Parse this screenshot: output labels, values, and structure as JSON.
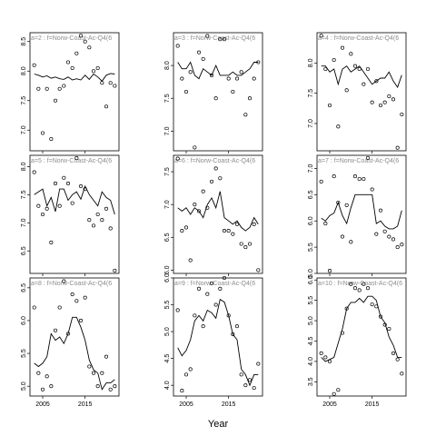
{
  "chart_data": {
    "type": "scatter",
    "xlabel": "Year",
    "x_ticks": [
      "2005",
      "2015"
    ],
    "xlim": [
      2002,
      2023
    ],
    "panels": [
      {
        "label": "a=2 : f=Norw-Coast-Ac-Q4(6",
        "ylim": [
          6.65,
          8.65
        ],
        "yticks": [
          "7.0",
          "7.5",
          "8.0",
          "8.5"
        ],
        "points": {
          "x": [
            2003,
            2004,
            2005,
            2006,
            2007,
            2008,
            2009,
            2010,
            2011,
            2012,
            2013,
            2014,
            2015,
            2016,
            2017,
            2018,
            2019,
            2020,
            2021,
            2022
          ],
          "y": [
            8.1,
            7.7,
            6.95,
            7.7,
            6.85,
            7.5,
            7.7,
            7.75,
            8.15,
            8.05,
            8.3,
            8.6,
            8.5,
            8.4,
            8.0,
            8.05,
            7.8,
            7.4,
            7.8,
            7.75
          ]
        },
        "line": {
          "x": [
            2003,
            2004,
            2005,
            2006,
            2007,
            2008,
            2009,
            2010,
            2011,
            2012,
            2013,
            2014,
            2015,
            2016,
            2017,
            2018,
            2019,
            2020,
            2021,
            2022
          ],
          "y": [
            7.95,
            7.93,
            7.9,
            7.92,
            7.88,
            7.9,
            7.87,
            7.86,
            7.9,
            7.85,
            7.87,
            7.85,
            7.93,
            7.86,
            7.95,
            7.9,
            7.83,
            7.93,
            7.96,
            7.95
          ]
        }
      },
      {
        "label": "a=5 : f=Norw-Coast-Ac-Q4(6",
        "ylim": [
          6.1,
          8.2
        ],
        "yticks": [
          "6.5",
          "7.0",
          "7.5",
          "8.0"
        ],
        "points": {
          "x": [
            2003,
            2004,
            2005,
            2006,
            2007,
            2008,
            2009,
            2010,
            2011,
            2012,
            2013,
            2014,
            2015,
            2016,
            2017,
            2018,
            2019,
            2020,
            2021,
            2022
          ],
          "y": [
            7.9,
            7.3,
            7.15,
            7.25,
            6.65,
            7.7,
            7.3,
            7.8,
            7.7,
            7.35,
            8.15,
            7.65,
            7.6,
            7.05,
            6.95,
            7.15,
            7.05,
            7.25,
            6.9,
            6.15
          ]
        },
        "line": {
          "x": [
            2003,
            2004,
            2005,
            2006,
            2007,
            2008,
            2009,
            2010,
            2011,
            2012,
            2013,
            2014,
            2015,
            2016,
            2017,
            2018,
            2019,
            2020,
            2021,
            2022
          ],
          "y": [
            7.5,
            7.55,
            7.6,
            7.3,
            7.45,
            7.2,
            7.6,
            7.6,
            7.4,
            7.5,
            7.55,
            7.42,
            7.65,
            7.5,
            7.4,
            7.3,
            7.55,
            7.45,
            7.4,
            7.15
          ]
        }
      },
      {
        "label": "a=8 : f=Norw-Coast-Ac-Q4(6",
        "ylim": [
          4.85,
          6.65
        ],
        "yticks": [
          "5.0",
          "5.5",
          "6.0",
          "6.5"
        ],
        "points": {
          "x": [
            2003,
            2004,
            2005,
            2006,
            2007,
            2008,
            2009,
            2010,
            2011,
            2012,
            2013,
            2014,
            2015,
            2016,
            2017,
            2018,
            2019,
            2020,
            2021,
            2022
          ],
          "y": [
            6.2,
            5.2,
            4.95,
            5.15,
            5.0,
            5.85,
            6.2,
            6.6,
            5.8,
            6.4,
            6.3,
            6.0,
            6.35,
            5.3,
            5.2,
            5.0,
            5.2,
            5.45,
            4.95,
            5.0
          ]
        },
        "line": {
          "x": [
            2003,
            2004,
            2005,
            2006,
            2007,
            2008,
            2009,
            2010,
            2011,
            2012,
            2013,
            2014,
            2015,
            2016,
            2017,
            2018,
            2019,
            2020,
            2021,
            2022
          ],
          "y": [
            5.35,
            5.3,
            5.35,
            5.45,
            5.8,
            5.7,
            5.75,
            5.65,
            5.8,
            6.05,
            6.05,
            5.9,
            5.7,
            5.4,
            5.25,
            5.2,
            4.95,
            5.05,
            5.05,
            5.1
          ]
        }
      },
      {
        "label": "a=3 : f=Norw-Coast-Ac-Q4(6",
        "ylim": [
          6.7,
          8.5
        ],
        "yticks": [
          "7.0",
          "7.5",
          "8.0"
        ],
        "points": {
          "x": [
            2003,
            2004,
            2005,
            2006,
            2007,
            2008,
            2009,
            2010,
            2011,
            2012,
            2013,
            2014,
            2015,
            2016,
            2017,
            2018,
            2019,
            2020,
            2021,
            2022
          ],
          "y": [
            8.3,
            7.8,
            7.6,
            7.9,
            6.75,
            8.2,
            8.1,
            8.45,
            7.85,
            7.5,
            8.4,
            8.4,
            7.8,
            7.6,
            7.8,
            7.9,
            7.25,
            7.5,
            7.8,
            8.05
          ]
        },
        "line": {
          "x": [
            2003,
            2004,
            2005,
            2006,
            2007,
            2008,
            2009,
            2010,
            2011,
            2012,
            2013,
            2014,
            2015,
            2016,
            2017,
            2018,
            2019,
            2020,
            2021,
            2022
          ],
          "y": [
            8.05,
            7.95,
            7.95,
            8.05,
            7.85,
            7.8,
            7.95,
            7.9,
            7.85,
            8.0,
            7.85,
            7.85,
            7.85,
            7.9,
            7.85,
            7.85,
            7.9,
            7.95,
            8.05,
            8.05
          ]
        }
      },
      {
        "label": "a=6 : f=Norw-Coast-Ac-Q4(6",
        "ylim": [
          5.95,
          7.75
        ],
        "yticks": [
          "6.0",
          "6.5",
          "7.0",
          "7.5"
        ],
        "points": {
          "x": [
            2003,
            2004,
            2005,
            2006,
            2007,
            2008,
            2009,
            2010,
            2011,
            2012,
            2013,
            2014,
            2015,
            2016,
            2017,
            2018,
            2019,
            2020,
            2021,
            2022
          ],
          "y": [
            7.7,
            6.6,
            6.65,
            6.15,
            7.0,
            6.9,
            7.2,
            6.95,
            7.35,
            7.55,
            7.4,
            6.6,
            6.6,
            6.55,
            6.7,
            6.4,
            6.35,
            6.4,
            6.7,
            6.0
          ]
        },
        "line": {
          "x": [
            2003,
            2004,
            2005,
            2006,
            2007,
            2008,
            2009,
            2010,
            2011,
            2012,
            2013,
            2014,
            2015,
            2016,
            2017,
            2018,
            2019,
            2020,
            2021,
            2022
          ],
          "y": [
            6.95,
            6.9,
            6.95,
            6.85,
            6.95,
            6.9,
            6.8,
            7.0,
            7.1,
            6.95,
            7.2,
            6.8,
            6.75,
            6.7,
            6.75,
            6.65,
            6.6,
            6.65,
            6.8,
            6.7
          ]
        }
      },
      {
        "label": "a=9 : f=Norw-Coast-Ac-Q4(6",
        "ylim": [
          3.8,
          6.0
        ],
        "yticks": [
          "4.0",
          "4.5",
          "5.0",
          "5.5",
          "6.0"
        ],
        "points": {
          "x": [
            2003,
            2004,
            2005,
            2006,
            2007,
            2008,
            2009,
            2010,
            2011,
            2012,
            2013,
            2014,
            2015,
            2016,
            2017,
            2018,
            2019,
            2020,
            2021,
            2022
          ],
          "y": [
            5.4,
            3.9,
            4.2,
            4.3,
            5.3,
            5.8,
            5.1,
            5.7,
            5.9,
            5.5,
            5.8,
            6.0,
            5.3,
            4.95,
            5.1,
            4.2,
            4.0,
            4.1,
            3.95,
            4.4
          ]
        },
        "line": {
          "x": [
            2003,
            2004,
            2005,
            2006,
            2007,
            2008,
            2009,
            2010,
            2011,
            2012,
            2013,
            2014,
            2015,
            2016,
            2017,
            2018,
            2019,
            2020,
            2021,
            2022
          ],
          "y": [
            4.7,
            4.55,
            4.65,
            4.85,
            5.2,
            5.3,
            5.2,
            5.4,
            5.35,
            5.25,
            5.6,
            5.55,
            5.3,
            4.95,
            4.85,
            4.3,
            4.2,
            4.0,
            4.2,
            4.2
          ]
        }
      },
      {
        "label": "a=4 : f=Norw-Coast-Ac-Q4(6",
        "ylim": [
          6.55,
          8.5
        ],
        "yticks": [
          "7.0",
          "7.5",
          "8.0"
        ],
        "points": {
          "x": [
            2003,
            2004,
            2005,
            2006,
            2007,
            2008,
            2009,
            2010,
            2011,
            2012,
            2013,
            2014,
            2015,
            2016,
            2017,
            2018,
            2019,
            2020,
            2021,
            2022
          ],
          "y": [
            8.45,
            7.9,
            7.3,
            8.05,
            6.95,
            8.25,
            7.55,
            8.15,
            7.95,
            7.9,
            7.65,
            7.9,
            7.35,
            7.7,
            7.3,
            7.35,
            7.45,
            7.4,
            6.6,
            7.15
          ]
        },
        "line": {
          "x": [
            2003,
            2004,
            2005,
            2006,
            2007,
            2008,
            2009,
            2010,
            2011,
            2012,
            2013,
            2014,
            2015,
            2016,
            2017,
            2018,
            2019,
            2020,
            2021,
            2022
          ],
          "y": [
            7.95,
            7.95,
            7.85,
            7.9,
            7.65,
            7.9,
            7.95,
            7.85,
            7.9,
            7.95,
            7.85,
            7.75,
            7.65,
            7.7,
            7.75,
            7.75,
            7.85,
            7.7,
            7.6,
            7.8
          ]
        }
      },
      {
        "label": "a=7 : f=Norw-Coast-Ac-Q4(6",
        "ylim": [
          5.0,
          7.25
        ],
        "yticks": [
          "5.0",
          "5.5",
          "6.0",
          "6.5",
          "7.0"
        ],
        "points": {
          "x": [
            2003,
            2004,
            2005,
            2006,
            2007,
            2008,
            2009,
            2010,
            2011,
            2012,
            2013,
            2014,
            2015,
            2016,
            2017,
            2018,
            2019,
            2020,
            2021,
            2022
          ],
          "y": [
            6.75,
            5.95,
            5.05,
            6.85,
            6.35,
            5.7,
            6.3,
            5.6,
            6.85,
            6.8,
            6.8,
            7.2,
            6.6,
            5.75,
            6.2,
            5.8,
            5.7,
            5.65,
            5.5,
            5.55
          ]
        },
        "line": {
          "x": [
            2003,
            2004,
            2005,
            2006,
            2007,
            2008,
            2009,
            2010,
            2011,
            2012,
            2013,
            2014,
            2015,
            2016,
            2017,
            2018,
            2019,
            2020,
            2021,
            2022
          ],
          "y": [
            6.05,
            6.0,
            6.1,
            6.15,
            6.35,
            6.1,
            5.95,
            6.25,
            6.5,
            6.5,
            6.5,
            6.5,
            6.5,
            5.95,
            6.0,
            5.9,
            5.85,
            5.85,
            5.9,
            6.2
          ]
        }
      },
      {
        "label": "a=10 : f=Norw-Coast-Ac-Q4(6",
        "ylim": [
          3.15,
          6.05
        ],
        "yticks": [
          "3.5",
          "4.0",
          "4.5",
          "5.0",
          "5.5",
          "6.0"
        ],
        "points": {
          "x": [
            2003,
            2004,
            2005,
            2006,
            2007,
            2008,
            2009,
            2010,
            2011,
            2012,
            2013,
            2014,
            2015,
            2016,
            2017,
            2018,
            2019,
            2020,
            2021,
            2022
          ],
          "y": [
            4.2,
            4.1,
            4.0,
            3.2,
            3.3,
            4.7,
            5.3,
            5.9,
            5.8,
            5.75,
            5.9,
            5.8,
            5.4,
            5.35,
            5.1,
            4.9,
            4.8,
            4.2,
            4.05,
            3.7
          ]
        },
        "line": {
          "x": [
            2003,
            2004,
            2005,
            2006,
            2007,
            2008,
            2009,
            2010,
            2011,
            2012,
            2013,
            2014,
            2015,
            2016,
            2017,
            2018,
            2019,
            2020,
            2021,
            2022
          ],
          "y": [
            4.1,
            4.0,
            4.05,
            4.1,
            4.45,
            4.8,
            5.3,
            5.45,
            5.45,
            5.55,
            5.45,
            5.6,
            5.6,
            5.5,
            5.1,
            4.95,
            4.6,
            4.4,
            4.1,
            4.1
          ]
        }
      }
    ]
  }
}
